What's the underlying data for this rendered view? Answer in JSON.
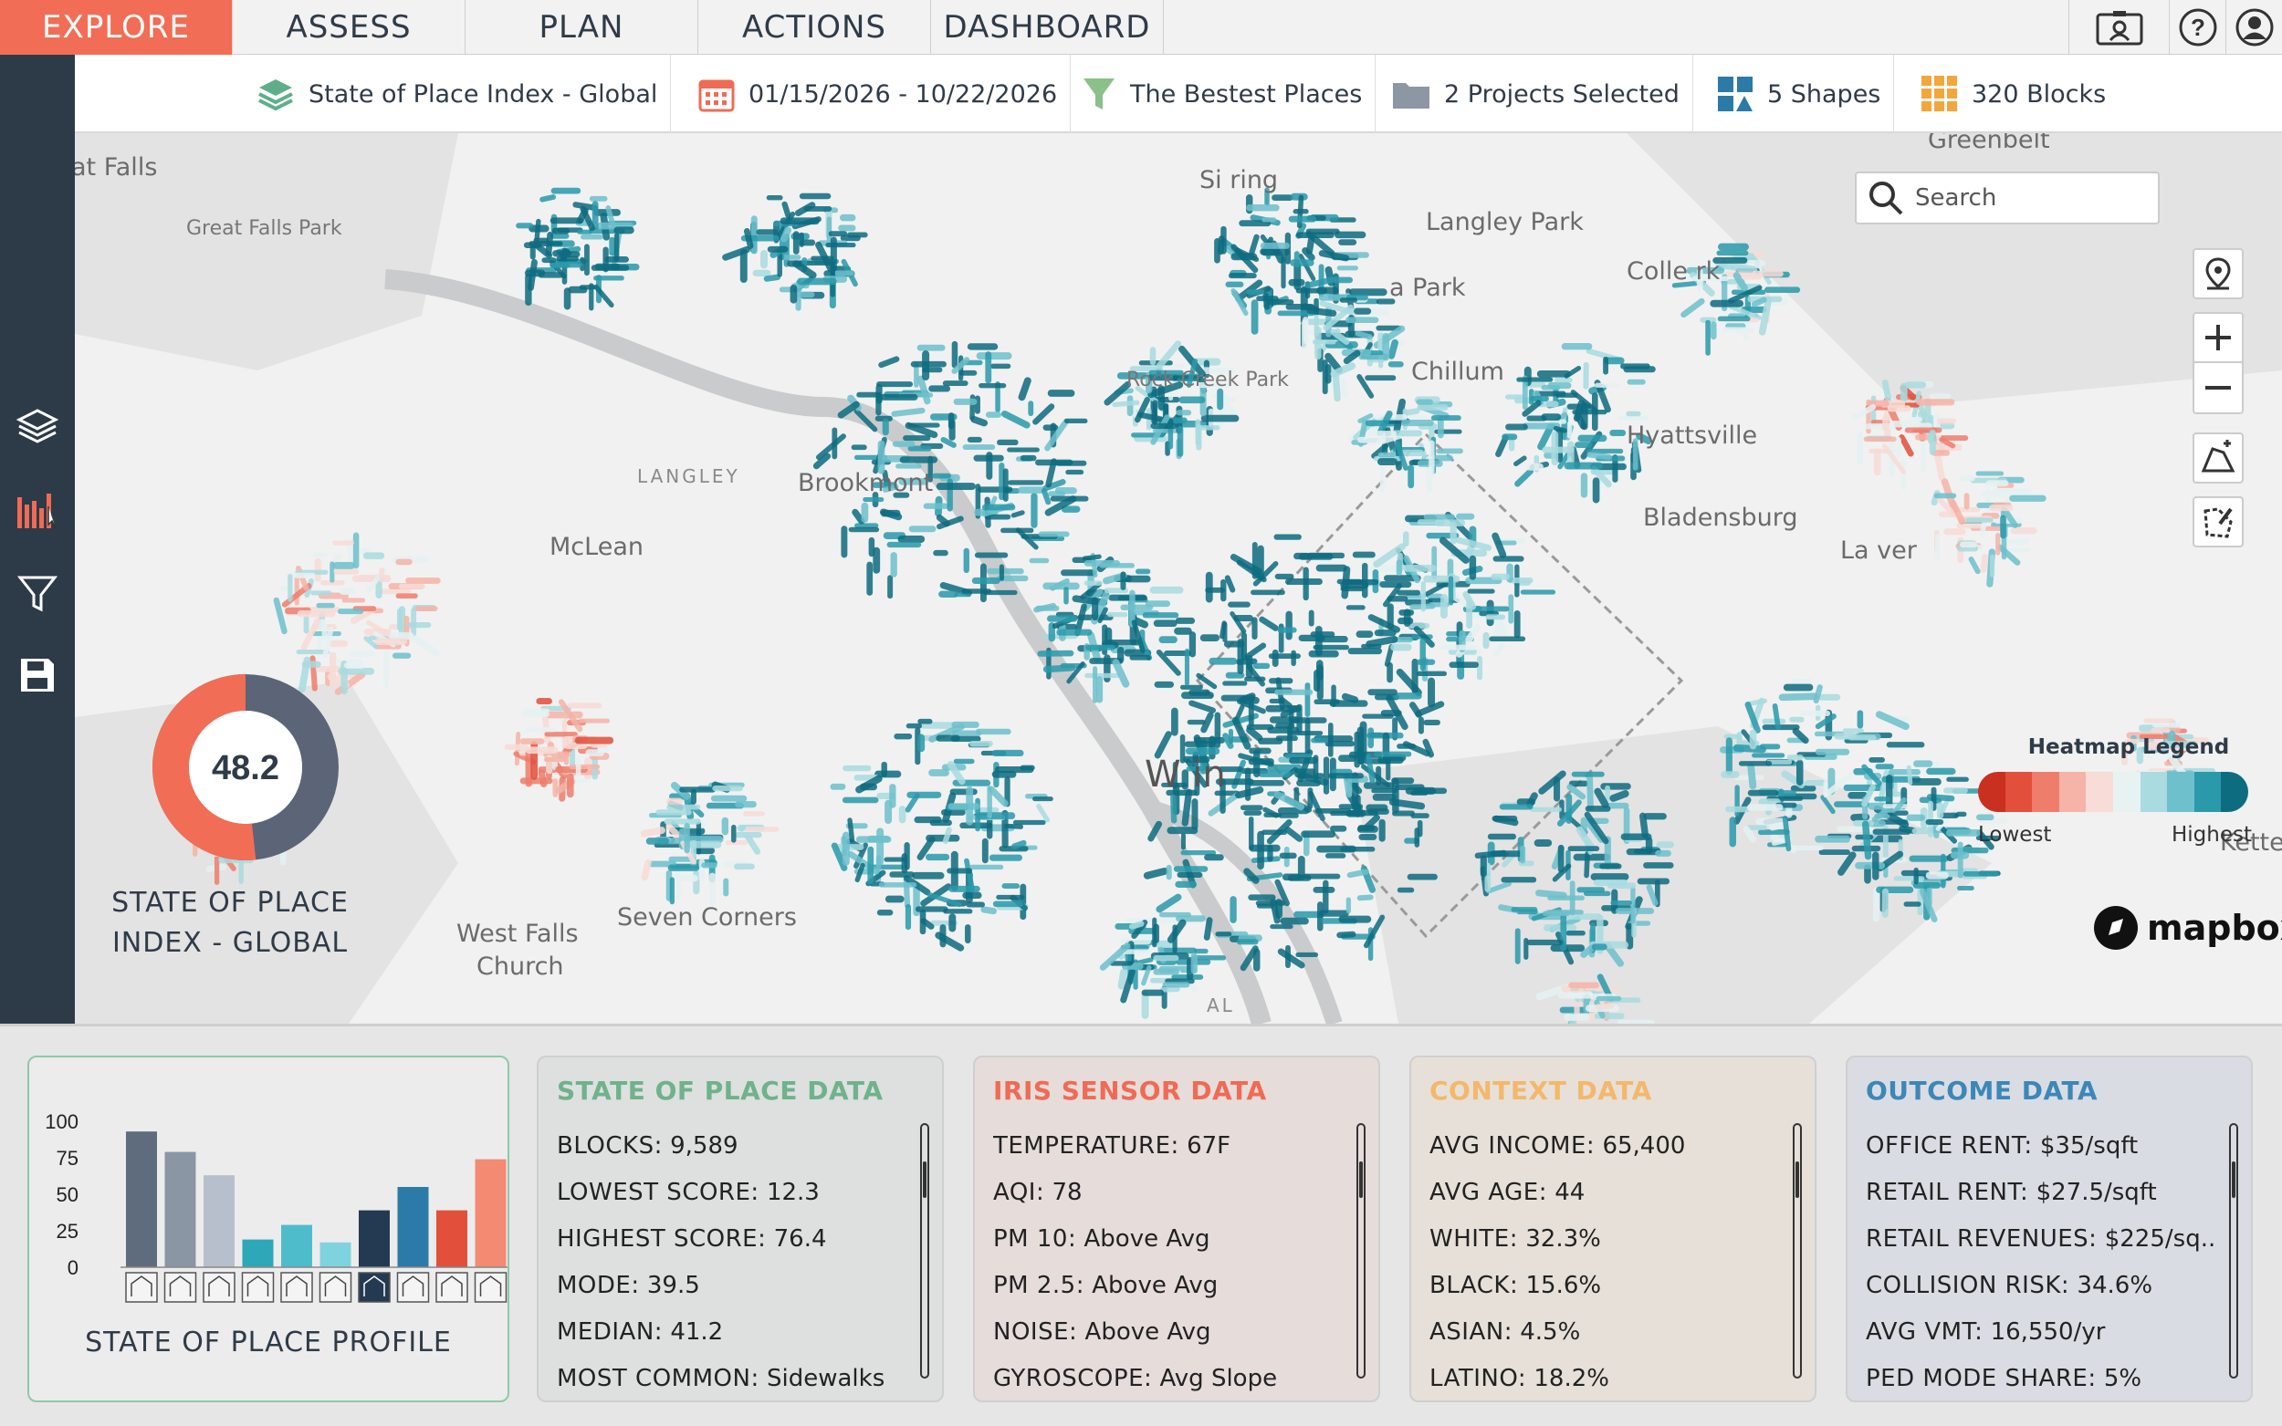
{
  "nav": {
    "tabs": [
      {
        "label": "EXPLORE",
        "active": true
      },
      {
        "label": "ASSESS"
      },
      {
        "label": "PLAN"
      },
      {
        "label": "ACTIONS"
      },
      {
        "label": "DASHBOARD"
      }
    ],
    "icons": [
      "contact-card-icon",
      "help-icon",
      "user-icon"
    ]
  },
  "toolbar": {
    "index": "State of Place Index - Global",
    "dates": "01/15/2026 - 10/22/2026",
    "filter": "The Bestest Places",
    "projects": "2 Projects Selected",
    "shapes": "5 Shapes",
    "blocks": "320 Blocks"
  },
  "sidebar": {
    "icons": [
      "layers-icon",
      "bar-chart-icon",
      "filter-icon",
      "save-icon"
    ]
  },
  "map": {
    "search_placeholder": "Search",
    "labels": {
      "falls": "at Falls",
      "great_falls_park": "Great Falls Park",
      "langley_park": "Langley Park",
      "park": "a Park",
      "college_park": "Colle        rk",
      "chillum": "Chillum",
      "rock_creek": "Rock Creek Park",
      "hyattsville": "Hyattsville",
      "langley": "LANGLEY",
      "brookmont": "Brookmont",
      "mclean": "McLean",
      "bladensburg": "Bladensburg",
      "landover": "La      ver",
      "silver_spring": "Si         ring",
      "west_falls_1": "West Falls",
      "west_falls_2": "Church",
      "seven_corners": "Seven Corners",
      "greenbelt": "Greenbelt",
      "washington": "W     in",
      "kettering": "Kette",
      "al": "AL"
    },
    "score": "48.2",
    "score_fraction": 0.482,
    "score_caption_1": "STATE OF PLACE",
    "score_caption_2": "INDEX - GLOBAL",
    "legend_title": "Heatmap Legend",
    "legend_low": "Lowest",
    "legend_high": "Highest",
    "legend_colors": [
      "#c9301f",
      "#e2503c",
      "#ef7d6c",
      "#f6b3a8",
      "#f7dcd7",
      "#e7f2f3",
      "#a9dbe0",
      "#6dc0cc",
      "#2a9aab",
      "#0e6c80"
    ],
    "mapbox": "mapbox",
    "colors": {
      "teal": "#0e6c80",
      "red": "#e2503c"
    }
  },
  "profile": {
    "title": "STATE OF PLACE PROFILE",
    "yticks": [
      "100",
      "75",
      "50",
      "25",
      "0"
    ],
    "bars": [
      {
        "value": 93,
        "color": "#5f6c7e"
      },
      {
        "value": 79,
        "color": "#8b96a5"
      },
      {
        "value": 63,
        "color": "#b7bfcc"
      },
      {
        "value": 19,
        "color": "#2ea7b8"
      },
      {
        "value": 29,
        "color": "#4fbccc"
      },
      {
        "value": 17,
        "color": "#7fd3df"
      },
      {
        "value": 39,
        "color": "#243a52"
      },
      {
        "value": 55,
        "color": "#2c7aa8"
      },
      {
        "value": 39,
        "color": "#e2503c"
      },
      {
        "value": 74,
        "color": "#f48a72"
      }
    ]
  },
  "cards": [
    {
      "title": "STATE OF PLACE DATA",
      "title_color": "#6fb28b",
      "bg": "#dde0de",
      "rows": [
        {
          "k": "BLOCKS:",
          "v": "9,589"
        },
        {
          "k": "LOWEST SCORE:",
          "v": "12.3"
        },
        {
          "k": "HIGHEST SCORE:",
          "v": "76.4"
        },
        {
          "k": "MODE:",
          "v": "39.5"
        },
        {
          "k": "MEDIAN:",
          "v": "41.2"
        },
        {
          "k": "MOST COMMON:",
          "v": "Sidewalks"
        }
      ]
    },
    {
      "title": "IRIS SENSOR DATA",
      "title_color": "#ef6b55",
      "bg": "#e6dcd9",
      "rows": [
        {
          "k": "TEMPERATURE:",
          "v": "67F"
        },
        {
          "k": "AQI:",
          "v": "78"
        },
        {
          "k": "PM 10:",
          "v": "Above Avg"
        },
        {
          "k": "PM 2.5:",
          "v": "Above Avg"
        },
        {
          "k": "NOISE:",
          "v": "Above Avg"
        },
        {
          "k": "GYROSCOPE:",
          "v": "Avg Slope"
        }
      ]
    },
    {
      "title": "CONTEXT DATA",
      "title_color": "#f3b86a",
      "bg": "#e6e0d8",
      "rows": [
        {
          "k": "AVG INCOME:",
          "v": "65,400"
        },
        {
          "k": "AVG AGE:",
          "v": "44"
        },
        {
          "k": "WHITE:",
          "v": "32.3%"
        },
        {
          "k": "BLACK:",
          "v": "15.6%"
        },
        {
          "k": "ASIAN:",
          "v": "4.5%"
        },
        {
          "k": "LATINO:",
          "v": "18.2%"
        }
      ]
    },
    {
      "title": "OUTCOME DATA",
      "title_color": "#3d87b8",
      "bg": "#d9dde3",
      "rows": [
        {
          "k": "OFFICE RENT:",
          "v": "$35/sqft"
        },
        {
          "k": "RETAIL RENT:",
          "v": "$27.5/sqft"
        },
        {
          "k": "RETAIL REVENUES:",
          "v": "$225/sq..."
        },
        {
          "k": "COLLISION RISK:",
          "v": "34.6%"
        },
        {
          "k": "AVG VMT:",
          "v": "16,550/yr"
        },
        {
          "k": "PED MODE SHARE:",
          "v": "5%"
        }
      ]
    }
  ]
}
